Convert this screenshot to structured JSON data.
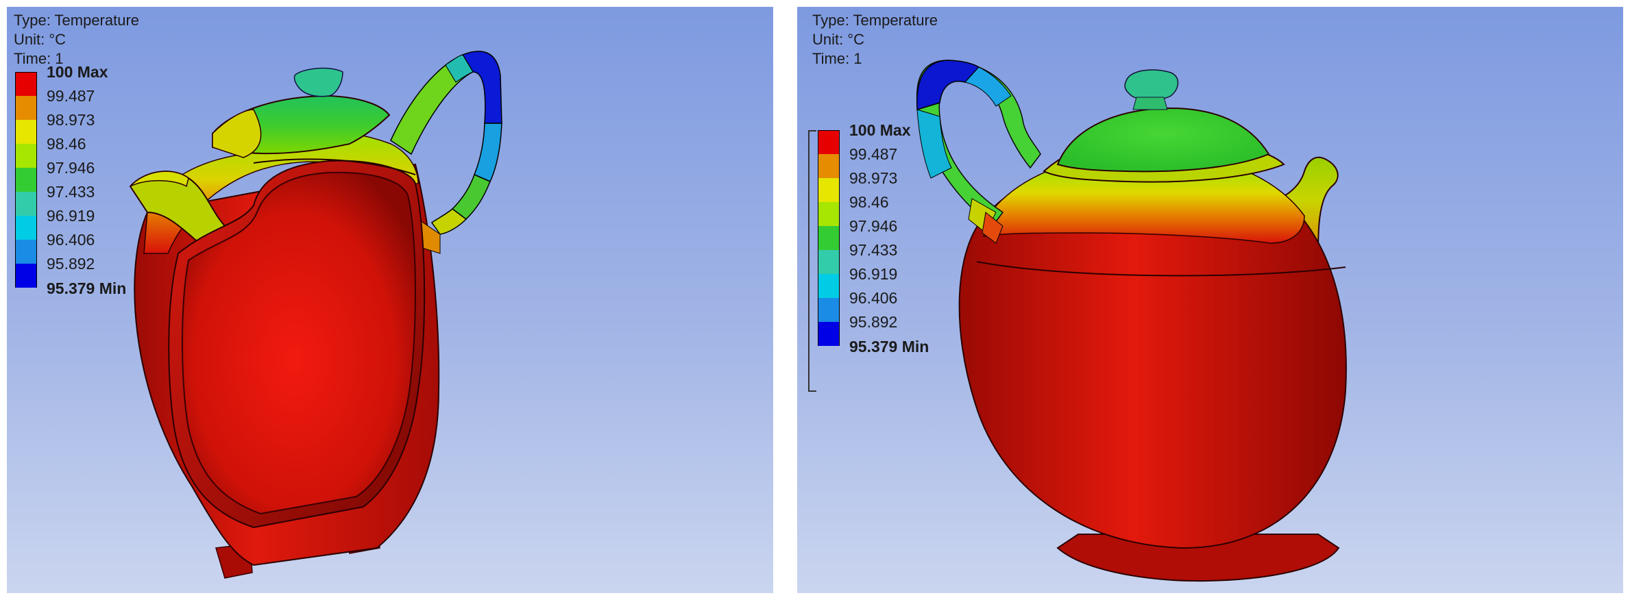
{
  "panels": [
    {
      "info": {
        "type": "Type: Temperature",
        "unit": "Unit: °C",
        "time": "Time: 1"
      },
      "legend": {
        "max_label": "100 Max",
        "min_label": "95.379 Min",
        "values": [
          "99.487",
          "98.973",
          "98.46",
          "97.946",
          "97.433",
          "96.919",
          "96.406",
          "95.892"
        ]
      }
    },
    {
      "info": {
        "type": "Type: Temperature",
        "unit": "Unit: °C",
        "time": "Time: 1"
      },
      "legend": {
        "max_label": "100 Max",
        "min_label": "95.379 Min",
        "values": [
          "99.487",
          "98.973",
          "98.46",
          "97.946",
          "97.433",
          "96.919",
          "96.406",
          "95.892"
        ]
      }
    }
  ],
  "legend_colors": [
    "#e60000",
    "#e68c00",
    "#e6e600",
    "#a6e600",
    "#33cc33",
    "#33ccaa",
    "#00cce6",
    "#1a8ce6",
    "#0000e6"
  ],
  "background_gradient": [
    "#7e9ae0",
    "#cad5ef"
  ]
}
